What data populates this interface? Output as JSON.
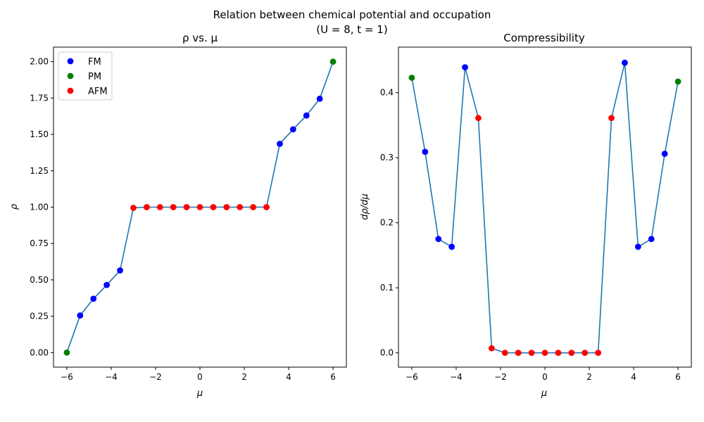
{
  "figure": {
    "title_line1": "Relation between chemical potential and occupation",
    "title_line2": "(U = 8, t = 1)"
  },
  "colors": {
    "line": "#1f77b4",
    "FM": "#0000ff",
    "PM": "#008000",
    "AFM": "#ff0000"
  },
  "chart_data": [
    {
      "type": "line",
      "title": "ρ vs. μ",
      "xlabel": "μ",
      "ylabel": "ρ",
      "xlim": [
        -6.6,
        6.6
      ],
      "ylim": [
        -0.1,
        2.1
      ],
      "xticks": [
        -6,
        -4,
        -2,
        0,
        2,
        4,
        6
      ],
      "xtick_labels": [
        "−6",
        "−4",
        "−2",
        "0",
        "2",
        "4",
        "6"
      ],
      "yticks": [
        0,
        0.25,
        0.5,
        0.75,
        1.0,
        1.25,
        1.5,
        1.75,
        2.0
      ],
      "ytick_labels": [
        "0.00",
        "0.25",
        "0.50",
        "0.75",
        "1.00",
        "1.25",
        "1.50",
        "1.75",
        "2.00"
      ],
      "grid": false,
      "legend": {
        "position": "upper-left",
        "entries": [
          "FM",
          "PM",
          "AFM"
        ]
      },
      "x": [
        -6.0,
        -5.4,
        -4.8,
        -4.2,
        -3.6,
        -3.0,
        -2.4,
        -1.8,
        -1.2,
        -0.6,
        0.0,
        0.6,
        1.2,
        1.8,
        2.4,
        3.0,
        3.6,
        4.2,
        4.8,
        5.4,
        6.0
      ],
      "y": [
        0.0,
        0.255,
        0.37,
        0.465,
        0.565,
        0.995,
        1.0,
        1.0,
        1.0,
        1.0,
        1.0,
        1.0,
        1.0,
        1.0,
        1.0,
        1.0,
        1.435,
        1.535,
        1.63,
        1.745,
        2.0
      ],
      "phase": [
        "PM",
        "FM",
        "FM",
        "FM",
        "FM",
        "AFM",
        "AFM",
        "AFM",
        "AFM",
        "AFM",
        "AFM",
        "AFM",
        "AFM",
        "AFM",
        "AFM",
        "AFM",
        "FM",
        "FM",
        "FM",
        "FM",
        "PM"
      ]
    },
    {
      "type": "line",
      "title": "Compressibility",
      "xlabel": "μ",
      "ylabel": "dρ/dμ",
      "xlim": [
        -6.6,
        6.6
      ],
      "ylim": [
        -0.022,
        0.47
      ],
      "xticks": [
        -6,
        -4,
        -2,
        0,
        2,
        4,
        6
      ],
      "xtick_labels": [
        "−6",
        "−4",
        "−2",
        "0",
        "2",
        "4",
        "6"
      ],
      "yticks": [
        0.0,
        0.1,
        0.2,
        0.3,
        0.4
      ],
      "ytick_labels": [
        "0.0",
        "0.1",
        "0.2",
        "0.3",
        "0.4"
      ],
      "grid": false,
      "x": [
        -6.0,
        -5.4,
        -4.8,
        -4.2,
        -3.6,
        -3.0,
        -2.4,
        -1.8,
        -1.2,
        -0.6,
        0.0,
        0.6,
        1.2,
        1.8,
        2.4,
        3.0,
        3.6,
        4.2,
        4.8,
        5.4,
        6.0
      ],
      "y": [
        0.423,
        0.309,
        0.175,
        0.163,
        0.439,
        0.361,
        0.007,
        0.0,
        0.0,
        0.0,
        0.0,
        0.0,
        0.0,
        0.0,
        0.0,
        0.361,
        0.446,
        0.163,
        0.175,
        0.306,
        0.417
      ],
      "phase": [
        "PM",
        "FM",
        "FM",
        "FM",
        "FM",
        "AFM",
        "AFM",
        "AFM",
        "AFM",
        "AFM",
        "AFM",
        "AFM",
        "AFM",
        "AFM",
        "AFM",
        "AFM",
        "FM",
        "FM",
        "FM",
        "FM",
        "PM"
      ]
    }
  ]
}
